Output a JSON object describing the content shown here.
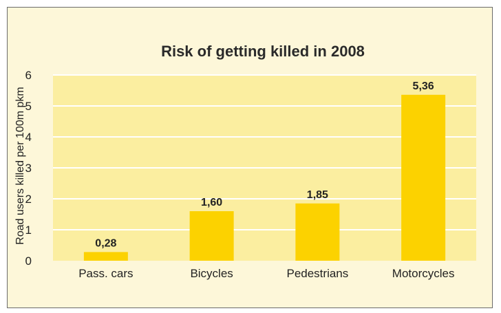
{
  "chart_data": {
    "type": "bar",
    "title": "Risk of getting killed in 2008",
    "xlabel": "",
    "ylabel": "Road users killed per 100m pkm",
    "categories": [
      "Pass. cars",
      "Bicycles",
      "Pedestrians",
      "Motorcycles"
    ],
    "values": [
      0.28,
      1.6,
      1.85,
      5.36
    ],
    "value_labels": [
      "0,28",
      "1,60",
      "1,85",
      "5,36"
    ],
    "ylim": [
      0,
      6
    ],
    "yticks": [
      0,
      1,
      2,
      3,
      4,
      5,
      6
    ],
    "grid": true,
    "legend": "none"
  },
  "colors": {
    "frame_bg": "#fdf7d9",
    "plot_bg": "#fbeea0",
    "bar": "#fcd200",
    "gridline": "#ffffff",
    "text": "#222222",
    "title": "#2a2a2a"
  }
}
